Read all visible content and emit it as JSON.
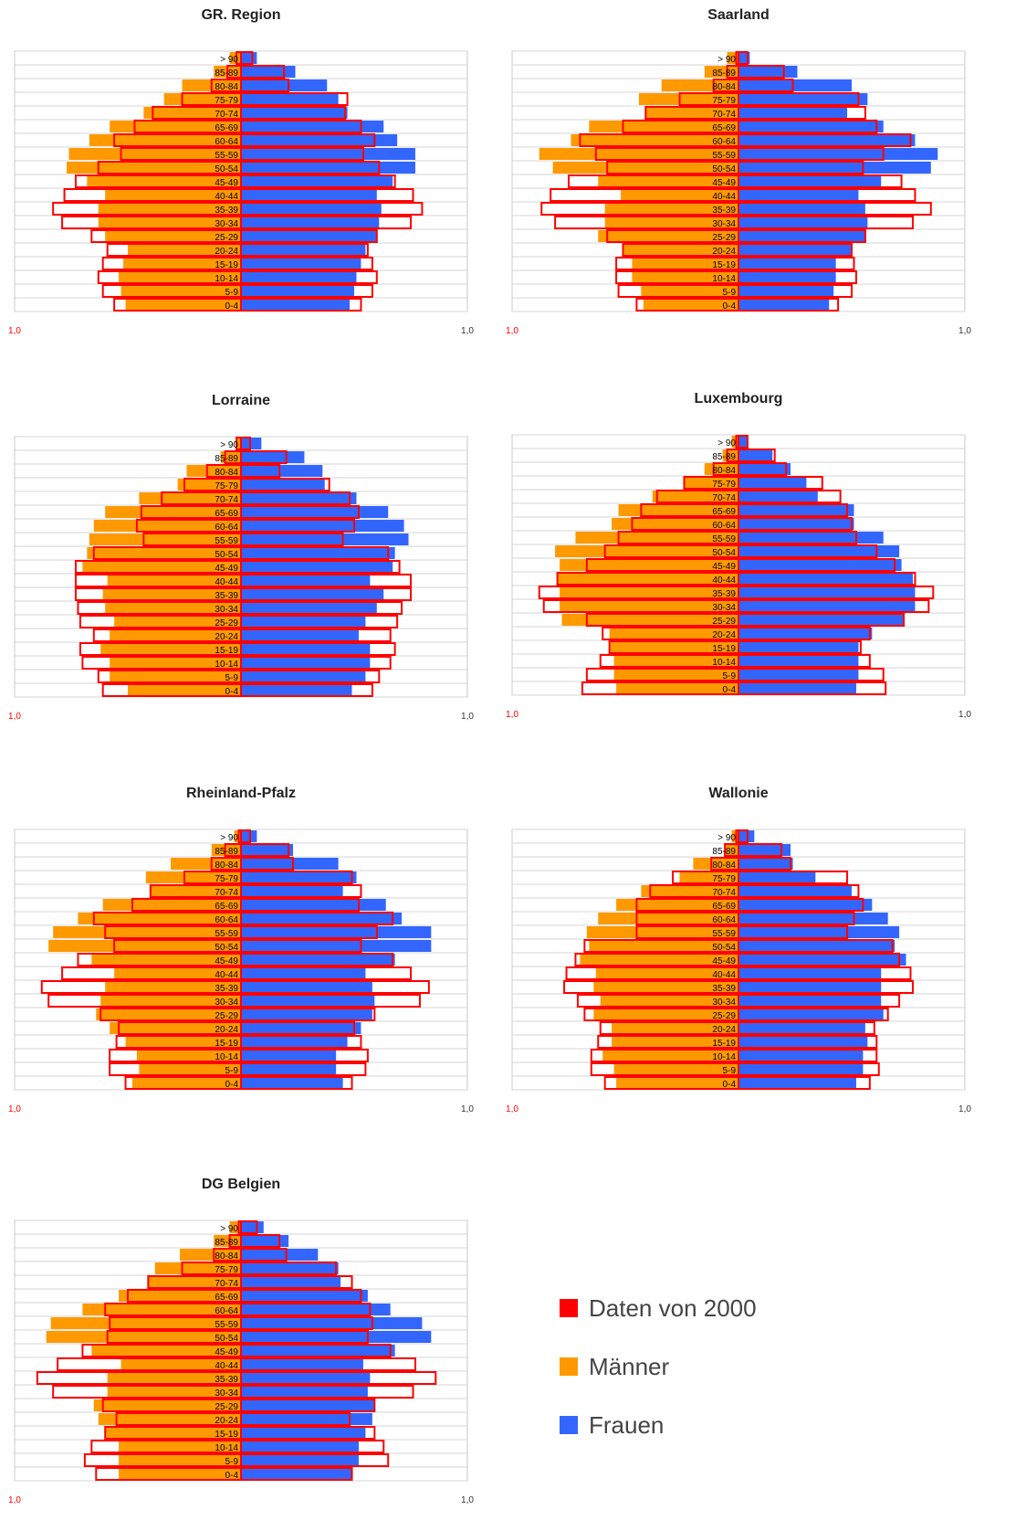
{
  "age_groups": [
    "0-4",
    "5-9",
    "10-14",
    "15-19",
    "20-24",
    "25-29",
    "30-34",
    "35-39",
    "40-44",
    "45-49",
    "50-54",
    "55-59",
    "60-64",
    "65-69",
    "70-74",
    "75-79",
    "80-84",
    "85-89",
    "> 90"
  ],
  "axis_min_label": "1,0",
  "axis_max_label": "1,0",
  "colors": {
    "men": "#FF9900",
    "women": "#3366FF",
    "ref": "#FF0000"
  },
  "legend": [
    {
      "label": "Daten von 2000",
      "color": "#FF0000"
    },
    {
      "label": "Männer",
      "color": "#FF9900"
    },
    {
      "label": "Frauen",
      "color": "#3366FF"
    }
  ],
  "chart_data": [
    {
      "type": "bar",
      "title": "GR. Region",
      "xlim": [
        -1.0,
        1.0
      ],
      "men": [
        0.51,
        0.53,
        0.54,
        0.52,
        0.5,
        0.6,
        0.63,
        0.63,
        0.6,
        0.68,
        0.77,
        0.76,
        0.67,
        0.58,
        0.43,
        0.34,
        0.26,
        0.12,
        0.05
      ],
      "women": [
        0.48,
        0.5,
        0.51,
        0.53,
        0.55,
        0.6,
        0.61,
        0.62,
        0.6,
        0.67,
        0.77,
        0.77,
        0.69,
        0.63,
        0.47,
        0.43,
        0.38,
        0.24,
        0.07
      ],
      "ref_men": [
        0.56,
        0.61,
        0.63,
        0.61,
        0.59,
        0.66,
        0.79,
        0.83,
        0.78,
        0.73,
        0.63,
        0.53,
        0.56,
        0.47,
        0.39,
        0.26,
        0.13,
        0.06,
        0.02
      ],
      "ref_women": [
        0.53,
        0.58,
        0.6,
        0.58,
        0.56,
        0.6,
        0.75,
        0.8,
        0.76,
        0.68,
        0.61,
        0.54,
        0.59,
        0.53,
        0.46,
        0.47,
        0.21,
        0.19,
        0.05
      ]
    },
    {
      "type": "bar",
      "title": "Saarland",
      "xlim": [
        -1.0,
        1.0
      ],
      "men": [
        0.42,
        0.43,
        0.47,
        0.47,
        0.51,
        0.62,
        0.59,
        0.59,
        0.52,
        0.62,
        0.82,
        0.88,
        0.74,
        0.66,
        0.41,
        0.44,
        0.34,
        0.15,
        0.05
      ],
      "women": [
        0.4,
        0.42,
        0.43,
        0.43,
        0.5,
        0.56,
        0.57,
        0.56,
        0.53,
        0.63,
        0.85,
        0.88,
        0.78,
        0.64,
        0.48,
        0.57,
        0.5,
        0.26,
        0.05
      ],
      "ref_men": [
        0.45,
        0.53,
        0.54,
        0.54,
        0.51,
        0.58,
        0.81,
        0.87,
        0.83,
        0.75,
        0.58,
        0.63,
        0.7,
        0.51,
        0.41,
        0.26,
        0.11,
        0.05,
        0.01
      ],
      "ref_women": [
        0.44,
        0.5,
        0.52,
        0.51,
        0.5,
        0.56,
        0.77,
        0.85,
        0.78,
        0.72,
        0.55,
        0.64,
        0.76,
        0.61,
        0.56,
        0.53,
        0.24,
        0.2,
        0.04
      ]
    },
    {
      "type": "bar",
      "title": "Lorraine",
      "xlim": [
        -1.0,
        1.0
      ],
      "men": [
        0.5,
        0.58,
        0.58,
        0.62,
        0.58,
        0.56,
        0.6,
        0.61,
        0.59,
        0.7,
        0.68,
        0.67,
        0.65,
        0.6,
        0.45,
        0.28,
        0.24,
        0.09,
        0.02
      ],
      "women": [
        0.49,
        0.55,
        0.57,
        0.57,
        0.52,
        0.55,
        0.6,
        0.63,
        0.57,
        0.67,
        0.68,
        0.74,
        0.72,
        0.65,
        0.51,
        0.37,
        0.36,
        0.28,
        0.09
      ],
      "ref_men": [
        0.61,
        0.63,
        0.7,
        0.71,
        0.65,
        0.71,
        0.72,
        0.73,
        0.73,
        0.73,
        0.65,
        0.43,
        0.46,
        0.44,
        0.35,
        0.25,
        0.15,
        0.07,
        0.02
      ],
      "ref_women": [
        0.58,
        0.61,
        0.66,
        0.68,
        0.66,
        0.69,
        0.71,
        0.75,
        0.75,
        0.7,
        0.65,
        0.45,
        0.5,
        0.52,
        0.48,
        0.39,
        0.17,
        0.2,
        0.04
      ]
    },
    {
      "type": "bar",
      "title": "Luxembourg",
      "xlim": [
        -1.0,
        1.0
      ],
      "men": [
        0.54,
        0.55,
        0.55,
        0.57,
        0.57,
        0.78,
        0.79,
        0.79,
        0.8,
        0.79,
        0.81,
        0.72,
        0.56,
        0.53,
        0.38,
        0.24,
        0.15,
        0.07,
        0.03
      ],
      "women": [
        0.52,
        0.53,
        0.53,
        0.53,
        0.59,
        0.73,
        0.78,
        0.78,
        0.77,
        0.72,
        0.71,
        0.64,
        0.51,
        0.51,
        0.35,
        0.3,
        0.23,
        0.15,
        0.04
      ],
      "ref_men": [
        0.69,
        0.67,
        0.61,
        0.57,
        0.6,
        0.67,
        0.86,
        0.88,
        0.8,
        0.67,
        0.59,
        0.53,
        0.47,
        0.43,
        0.36,
        0.24,
        0.11,
        0.05,
        0.01
      ],
      "ref_women": [
        0.65,
        0.64,
        0.58,
        0.54,
        0.58,
        0.73,
        0.84,
        0.86,
        0.78,
        0.69,
        0.61,
        0.52,
        0.5,
        0.48,
        0.45,
        0.37,
        0.21,
        0.16,
        0.04
      ]
    },
    {
      "type": "bar",
      "title": "Rheinland-Pfalz",
      "xlim": [
        -1.0,
        1.0
      ],
      "men": [
        0.48,
        0.45,
        0.46,
        0.51,
        0.58,
        0.64,
        0.62,
        0.6,
        0.56,
        0.66,
        0.85,
        0.83,
        0.72,
        0.61,
        0.4,
        0.42,
        0.31,
        0.13,
        0.03
      ],
      "women": [
        0.45,
        0.42,
        0.42,
        0.47,
        0.53,
        0.58,
        0.59,
        0.58,
        0.55,
        0.68,
        0.84,
        0.84,
        0.71,
        0.64,
        0.45,
        0.51,
        0.43,
        0.23,
        0.07
      ],
      "ref_men": [
        0.51,
        0.58,
        0.58,
        0.55,
        0.54,
        0.62,
        0.85,
        0.88,
        0.79,
        0.72,
        0.56,
        0.6,
        0.65,
        0.48,
        0.4,
        0.25,
        0.13,
        0.07,
        0.01
      ],
      "ref_women": [
        0.49,
        0.55,
        0.56,
        0.53,
        0.5,
        0.59,
        0.79,
        0.83,
        0.75,
        0.67,
        0.53,
        0.6,
        0.67,
        0.52,
        0.53,
        0.49,
        0.23,
        0.21,
        0.04
      ]
    },
    {
      "type": "bar",
      "title": "Wallonie",
      "xlim": [
        -1.0,
        1.0
      ],
      "men": [
        0.54,
        0.55,
        0.6,
        0.56,
        0.56,
        0.64,
        0.61,
        0.64,
        0.63,
        0.7,
        0.66,
        0.67,
        0.62,
        0.54,
        0.43,
        0.26,
        0.2,
        0.06,
        0.03
      ],
      "women": [
        0.52,
        0.55,
        0.55,
        0.57,
        0.56,
        0.64,
        0.63,
        0.63,
        0.63,
        0.74,
        0.69,
        0.71,
        0.66,
        0.59,
        0.5,
        0.34,
        0.24,
        0.23,
        0.07
      ],
      "ref_men": [
        0.59,
        0.65,
        0.65,
        0.62,
        0.61,
        0.68,
        0.71,
        0.77,
        0.76,
        0.72,
        0.68,
        0.45,
        0.45,
        0.45,
        0.39,
        0.29,
        0.12,
        0.06,
        0.01
      ],
      "ref_women": [
        0.58,
        0.62,
        0.61,
        0.61,
        0.6,
        0.66,
        0.71,
        0.77,
        0.76,
        0.71,
        0.68,
        0.48,
        0.51,
        0.55,
        0.53,
        0.48,
        0.23,
        0.19,
        0.04
      ]
    },
    {
      "type": "bar",
      "title": "DG Belgien",
      "xlim": [
        -1.0,
        1.0
      ],
      "men": [
        0.54,
        0.54,
        0.54,
        0.6,
        0.63,
        0.65,
        0.59,
        0.59,
        0.53,
        0.66,
        0.86,
        0.84,
        0.7,
        0.54,
        0.41,
        0.38,
        0.27,
        0.12,
        0.05
      ],
      "women": [
        0.49,
        0.52,
        0.52,
        0.55,
        0.58,
        0.59,
        0.56,
        0.57,
        0.54,
        0.68,
        0.84,
        0.8,
        0.66,
        0.56,
        0.44,
        0.43,
        0.34,
        0.21,
        0.1
      ],
      "ref_men": [
        0.64,
        0.69,
        0.66,
        0.6,
        0.55,
        0.61,
        0.83,
        0.9,
        0.81,
        0.7,
        0.59,
        0.58,
        0.6,
        0.5,
        0.41,
        0.26,
        0.12,
        0.05,
        0.01
      ],
      "ref_women": [
        0.49,
        0.65,
        0.63,
        0.59,
        0.48,
        0.59,
        0.76,
        0.86,
        0.77,
        0.66,
        0.56,
        0.58,
        0.57,
        0.53,
        0.49,
        0.42,
        0.2,
        0.17,
        0.07
      ]
    }
  ]
}
